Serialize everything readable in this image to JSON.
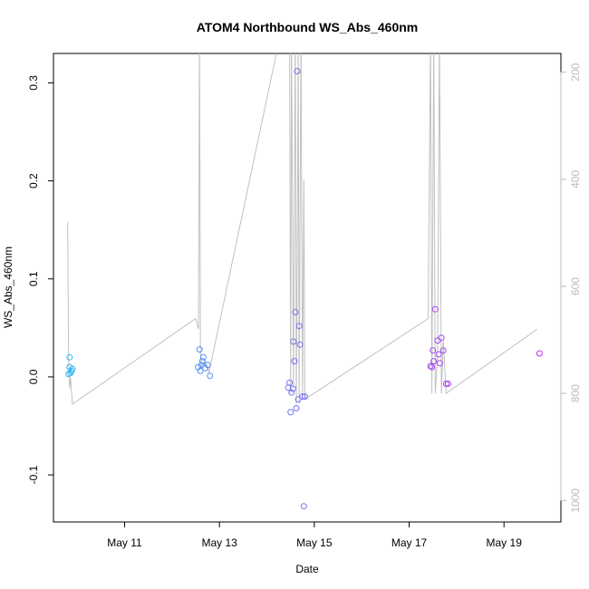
{
  "chart_data": {
    "type": "scatter",
    "title": "ATOM4 Northbound WS_Abs_460nm",
    "xlabel": "Date",
    "ylabel": "WS_Abs_460nm",
    "x_ticks": [
      "May 11",
      "May 13",
      "May 15",
      "May 17",
      "May 19"
    ],
    "x_tick_days": [
      11,
      13,
      15,
      17,
      19
    ],
    "xlim_days": [
      9.5,
      20.2
    ],
    "y_ticks": [
      "-0.1",
      "0.0",
      "0.1",
      "0.2",
      "0.3"
    ],
    "y_tick_values": [
      -0.1,
      0.0,
      0.1,
      0.2,
      0.3
    ],
    "ylim": [
      -0.148,
      0.33
    ],
    "y2_ticks": [
      "200",
      "400",
      "600",
      "800",
      "1000"
    ],
    "y2_tick_values": [
      200,
      400,
      600,
      800,
      1000
    ],
    "y2_lim": [
      165,
      1040
    ],
    "y2_reversed": true,
    "grid": false,
    "series": [
      {
        "marker": "open-circle",
        "color_from": "#29b6f6",
        "color_to": "#c32af0",
        "x": [
          9.82,
          9.84,
          9.84,
          9.86,
          9.88,
          9.9,
          12.55,
          12.58,
          12.6,
          12.62,
          12.64,
          12.66,
          12.7,
          12.75,
          12.8,
          14.45,
          14.48,
          14.5,
          14.52,
          14.55,
          14.56,
          14.58,
          14.6,
          14.62,
          14.64,
          14.66,
          14.68,
          14.7,
          14.75,
          14.78,
          14.8,
          17.45,
          17.48,
          17.5,
          17.52,
          17.55,
          17.6,
          17.62,
          17.65,
          17.68,
          17.72,
          17.78,
          17.82,
          19.75
        ],
        "y": [
          0.003,
          0.01,
          0.02,
          0.004,
          0.006,
          0.008,
          0.01,
          0.028,
          0.006,
          0.012,
          0.016,
          0.02,
          0.009,
          0.012,
          0.001,
          -0.011,
          -0.006,
          -0.036,
          -0.016,
          -0.012,
          0.036,
          0.016,
          0.066,
          -0.032,
          0.312,
          -0.023,
          0.052,
          0.033,
          -0.02,
          -0.132,
          -0.02,
          0.011,
          0.01,
          0.027,
          0.016,
          0.069,
          0.037,
          0.023,
          0.014,
          0.04,
          0.027,
          -0.007,
          -0.007,
          0.024
        ]
      }
    ],
    "depth_line": {
      "color": "#c0c0c0",
      "x": [
        9.8,
        9.82,
        9.84,
        9.86,
        9.9,
        12.5,
        12.56,
        12.58,
        12.6,
        12.62,
        12.7,
        12.78,
        14.2,
        14.45,
        14.48,
        14.5,
        14.52,
        14.56,
        14.6,
        14.62,
        14.65,
        14.66,
        14.68,
        14.72,
        14.75,
        14.78,
        14.8,
        14.82,
        17.4,
        17.45,
        17.48,
        17.52,
        17.55,
        17.6,
        17.64,
        17.68,
        17.72,
        17.78,
        19.7
      ],
      "y": [
        480,
        740,
        790,
        770,
        820,
        660,
        680,
        135,
        720,
        750,
        740,
        760,
        165,
        130,
        135,
        800,
        130,
        790,
        135,
        820,
        395,
        130,
        820,
        125,
        810,
        400,
        800,
        810,
        660,
        130,
        800,
        130,
        800,
        730,
        130,
        800,
        700,
        800,
        680
      ]
    }
  }
}
